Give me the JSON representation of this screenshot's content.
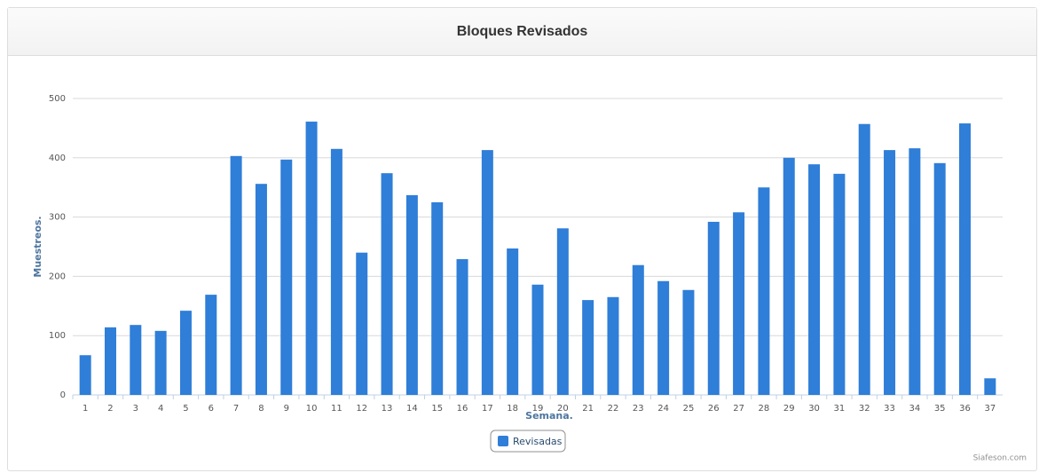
{
  "chart_data": {
    "type": "bar",
    "title": "Bloques Revisados",
    "x_label": "Semana.",
    "y_label": "Muestreos.",
    "categories": [
      "1",
      "2",
      "3",
      "4",
      "5",
      "6",
      "7",
      "8",
      "9",
      "10",
      "11",
      "12",
      "13",
      "14",
      "15",
      "16",
      "17",
      "18",
      "19",
      "20",
      "21",
      "22",
      "23",
      "24",
      "25",
      "26",
      "27",
      "28",
      "29",
      "30",
      "31",
      "32",
      "33",
      "34",
      "35",
      "36",
      "37"
    ],
    "series": [
      {
        "name": "Revisadas",
        "color": "#2f7ed8",
        "values": [
          67,
          114,
          118,
          108,
          142,
          169,
          403,
          356,
          397,
          461,
          415,
          240,
          374,
          337,
          325,
          229,
          413,
          247,
          186,
          281,
          160,
          165,
          219,
          192,
          177,
          292,
          308,
          350,
          400,
          389,
          373,
          457,
          413,
          416,
          391,
          458,
          28
        ]
      }
    ],
    "ylim": [
      0,
      500
    ],
    "yticks": [
      0,
      100,
      200,
      300,
      400,
      500
    ],
    "grid": true,
    "legend": "bottom",
    "credits": "Siafeson.com"
  }
}
